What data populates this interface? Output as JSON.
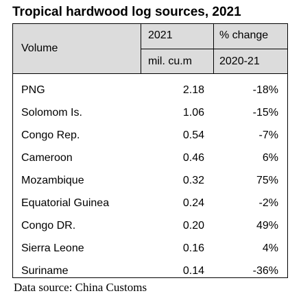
{
  "chart_data": {
    "type": "table",
    "title": "Tropical hardwood log sources, 2021",
    "columns": {
      "label": "Volume",
      "volume_header_line1": "2021",
      "volume_header_line2": "mil. cu.m",
      "change_header_line1": "% change",
      "change_header_line2": "2020-21"
    },
    "rows": [
      {
        "country": "PNG",
        "volume": "2.18",
        "change": "-18%"
      },
      {
        "country": "Solomom Is.",
        "volume": "1.06",
        "change": "-15%"
      },
      {
        "country": "Congo Rep.",
        "volume": "0.54",
        "change": "-7%"
      },
      {
        "country": "Cameroon",
        "volume": "0.46",
        "change": "6%"
      },
      {
        "country": "Mozambique",
        "volume": "0.32",
        "change": "75%"
      },
      {
        "country": "Equatorial Guinea",
        "volume": "0.24",
        "change": "-2%"
      },
      {
        "country": "Congo DR.",
        "volume": "0.20",
        "change": "49%"
      },
      {
        "country": "Sierra Leone",
        "volume": "0.16",
        "change": "4%"
      },
      {
        "country": "Suriname",
        "volume": "0.14",
        "change": "-36%"
      }
    ],
    "source": "Data source: China Customs"
  }
}
